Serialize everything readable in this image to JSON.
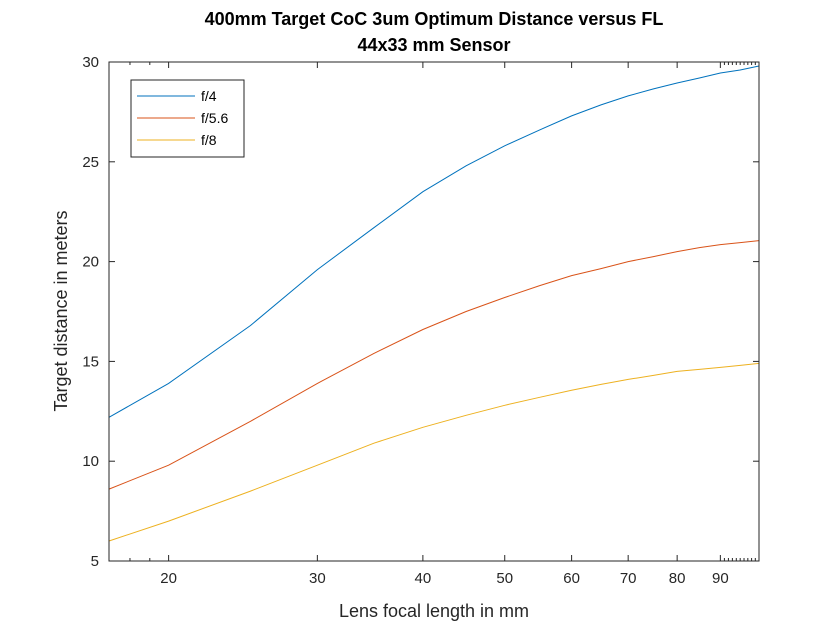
{
  "chart_data": {
    "type": "line",
    "title": "400mm Target CoC 3um Optimum Distance versus FL",
    "subtitle": "44x33 mm Sensor",
    "xlabel": "Lens focal length in mm",
    "ylabel": "Target distance in meters",
    "x_scale": "log",
    "xlim": [
      17,
      100
    ],
    "ylim": [
      5,
      30
    ],
    "xticks": [
      20,
      30,
      40,
      50,
      60,
      70,
      80,
      90
    ],
    "xtick_labels": [
      "20",
      "30",
      "40",
      "50",
      "60",
      "70",
      "80",
      "90"
    ],
    "yticks": [
      5,
      10,
      15,
      20,
      25,
      30
    ],
    "ytick_labels": [
      "5",
      "10",
      "15",
      "20",
      "25",
      "30"
    ],
    "grid": false,
    "legend_position": "top-left",
    "x": [
      17,
      20,
      25,
      30,
      35,
      40,
      45,
      50,
      55,
      60,
      65,
      70,
      75,
      80,
      85,
      90,
      95,
      100
    ],
    "series": [
      {
        "name": "f/4",
        "color": "#0072BD",
        "values": [
          12.2,
          13.9,
          16.8,
          19.6,
          21.7,
          23.5,
          24.8,
          25.8,
          26.6,
          27.3,
          27.85,
          28.3,
          28.65,
          28.95,
          29.2,
          29.45,
          29.6,
          29.8
        ]
      },
      {
        "name": "f/5.6",
        "color": "#D95319",
        "values": [
          8.6,
          9.8,
          12.0,
          13.9,
          15.4,
          16.6,
          17.5,
          18.2,
          18.8,
          19.3,
          19.65,
          20.0,
          20.25,
          20.5,
          20.7,
          20.85,
          20.95,
          21.05
        ]
      },
      {
        "name": "f/8",
        "color": "#EDB120",
        "values": [
          6.0,
          7.0,
          8.5,
          9.8,
          10.9,
          11.7,
          12.3,
          12.8,
          13.2,
          13.55,
          13.85,
          14.1,
          14.3,
          14.5,
          14.6,
          14.7,
          14.8,
          14.9
        ]
      }
    ]
  }
}
